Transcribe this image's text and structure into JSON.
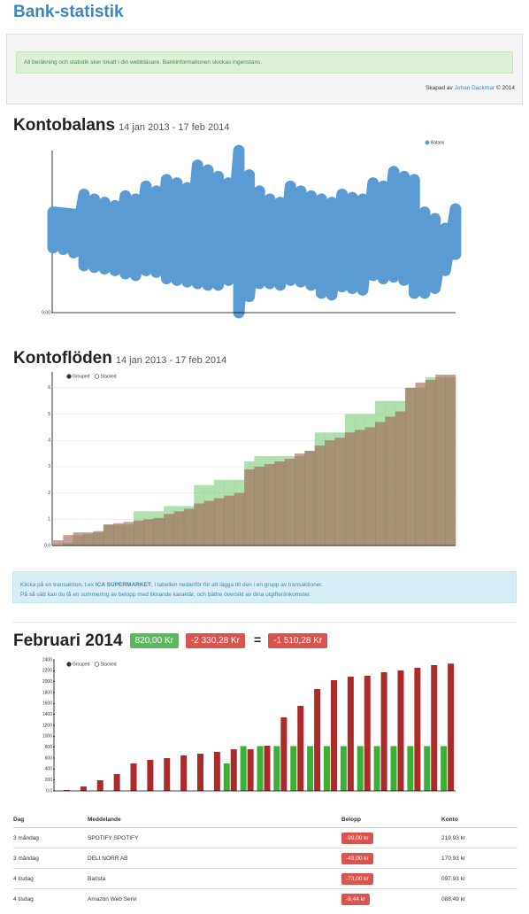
{
  "header": {
    "title": "Bank-statistik"
  },
  "notice": "All beräkning och statistik sker lokalt i din webbläsare. Bankinformationen skickas ingenstans.",
  "credit": [
    "Skapad av ",
    "Johan Dackmar",
    " © 2014"
  ],
  "info": [
    [
      "Klicka på en transaktion, t.ex ",
      "ICA SUPERMARKET",
      ", i tabellen nedanför för att lägga till den i en grupp av transaktioner."
    ],
    "På så sätt kan du få en summering av belopp med liknande karaktär, och bättre översikt av dina utgifter/inkomster."
  ],
  "chart_data": [
    {
      "type": "area",
      "title": "Kontobalans",
      "subtitle": "14 jan 2013 - 17 feb 2014",
      "ylim": [
        0,
        100
      ],
      "yticks": [
        {
          "value": 0,
          "label": "0.00"
        }
      ],
      "legend": "top-right",
      "series": [
        {
          "name": "Balans",
          "color": "#5a9bd4",
          "values": [
            62,
            40,
            60,
            39,
            58,
            37,
            73,
            29,
            70,
            28,
            68,
            27,
            66,
            26,
            72,
            24,
            70,
            23,
            78,
            26,
            75,
            25,
            82,
            21,
            80,
            20,
            77,
            19,
            91,
            18,
            88,
            17,
            84,
            17,
            80,
            20,
            100,
            0,
            85,
            10,
            75,
            18,
            70,
            18,
            68,
            17,
            78,
            20,
            75,
            19,
            72,
            17,
            70,
            12,
            68,
            11,
            73,
            16,
            71,
            15,
            70,
            14,
            80,
            23,
            78,
            21,
            87,
            22,
            84,
            20,
            82,
            12,
            62,
            12,
            58,
            15,
            52,
            26,
            64,
            36
          ]
        }
      ]
    },
    {
      "type": "step-area",
      "title": "Kontoflöden",
      "subtitle": "14 jan 2013 - 17 feb 2014",
      "legend_options": [
        "Grouped",
        "Stacked"
      ],
      "grid": true,
      "ylim": [
        0,
        6.6
      ],
      "yticks": [
        {
          "value": 0,
          "label": "0.0"
        },
        1,
        2,
        3,
        4,
        5,
        6
      ],
      "series": [
        {
          "color": "rgba(120,205,120,0.6)",
          "values": [
            0,
            0.1,
            0.4,
            0.45,
            0.5,
            0.8,
            0.8,
            0.8,
            1.3,
            1.3,
            1.3,
            1.5,
            1.5,
            1.5,
            2.3,
            2.3,
            2.5,
            2.5,
            2.5,
            3.2,
            3.4,
            3.4,
            3.4,
            3.4,
            3.4,
            3.6,
            4.3,
            4.3,
            4.3,
            5.0,
            5.0,
            5.0,
            5.5,
            5.5,
            5.5,
            6.0,
            6.0,
            6.4,
            6.4,
            6.4
          ]
        },
        {
          "color": "rgba(160,95,80,0.6)",
          "values": [
            0.2,
            0.4,
            0.5,
            0.5,
            0.55,
            0.8,
            0.85,
            0.9,
            0.95,
            1.0,
            1.05,
            1.2,
            1.3,
            1.4,
            1.6,
            1.7,
            1.8,
            1.9,
            2.0,
            2.9,
            3.0,
            3.1,
            3.2,
            3.3,
            3.5,
            3.6,
            3.8,
            4.0,
            4.1,
            4.3,
            4.4,
            4.5,
            4.7,
            4.9,
            5.1,
            6.0,
            6.2,
            6.3,
            6.5,
            6.5
          ]
        }
      ]
    },
    {
      "type": "bar",
      "title": "Februari 2014",
      "summary": [
        {
          "text": "820,00 Kr",
          "color": "#5cb85c"
        },
        {
          "text": "-2 330,28 Kr",
          "color": "#d9534f"
        },
        {
          "text": "="
        },
        {
          "text": "-1 510,28 Kr",
          "color": "#d9534f"
        }
      ],
      "legend_options": [
        "Grouped",
        "Stacked"
      ],
      "ylim": [
        0,
        2400
      ],
      "yticks": [
        {
          "value": 0,
          "label": "0.0"
        },
        200,
        400,
        600,
        800,
        1000,
        1200,
        1400,
        1600,
        1800,
        2000,
        2200,
        2400
      ],
      "series": [
        {
          "color": "#3cb034",
          "values": [
            null,
            null,
            null,
            null,
            null,
            null,
            null,
            null,
            null,
            null,
            503,
            820,
            820,
            820,
            820,
            820,
            820,
            820,
            820,
            820,
            820,
            820,
            820,
            820
          ]
        },
        {
          "color": "#ad2a2a",
          "values": [
            16,
            81,
            195,
            308,
            503,
            568,
            600,
            649,
            681,
            714,
            762,
            762,
            827,
            1346,
            1557,
            1865,
            2027,
            2092,
            2108,
            2173,
            2205,
            2254,
            2303,
            2330
          ]
        }
      ]
    }
  ],
  "table": {
    "headers": [
      "Dag",
      "Meddelande",
      "Belopp",
      "Konto"
    ],
    "rows": [
      [
        "3 måndag",
        "SPOTIFY SPOTIFY",
        "-99,00 kr",
        "219,93 kr"
      ],
      [
        "3 måndag",
        "DELI NORR AB",
        "-49,00 kr",
        "170,93 kr"
      ],
      [
        "4 tisdag",
        "Barista",
        "-73,00 kr",
        "097,93 kr"
      ],
      [
        "4 tisdag",
        "Amazon Web Servi",
        "-9,44 kr",
        "088,49 kr"
      ]
    ]
  }
}
